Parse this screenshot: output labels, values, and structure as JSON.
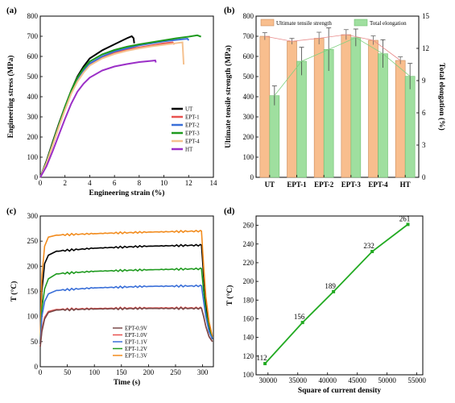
{
  "chart_data": [
    {
      "panel": "(a)",
      "type": "line",
      "xlabel": "Engineering strain (%)",
      "ylabel": "Engineering stress (MPa)",
      "xlim": [
        0,
        14
      ],
      "ylim": [
        0,
        800
      ],
      "xticks": [
        0,
        2,
        4,
        6,
        8,
        10,
        12,
        14
      ],
      "yticks": [
        0,
        100,
        200,
        300,
        400,
        500,
        600,
        700,
        800
      ],
      "legend": "right",
      "series": [
        {
          "name": "UT",
          "color": "#000000",
          "points": [
            [
              0,
              0
            ],
            [
              0.5,
              80
            ],
            [
              1,
              175
            ],
            [
              1.5,
              265
            ],
            [
              2,
              350
            ],
            [
              2.5,
              430
            ],
            [
              3,
              500
            ],
            [
              3.5,
              550
            ],
            [
              4,
              590
            ],
            [
              5,
              630
            ],
            [
              6,
              660
            ],
            [
              7,
              690
            ],
            [
              7.4,
              700
            ],
            [
              7.55,
              690
            ],
            [
              7.6,
              665
            ]
          ]
        },
        {
          "name": "EPT-1",
          "color": "#e8524f",
          "points": [
            [
              0,
              0
            ],
            [
              0.5,
              70
            ],
            [
              1,
              160
            ],
            [
              1.5,
              250
            ],
            [
              2,
              340
            ],
            [
              2.5,
              420
            ],
            [
              3,
              480
            ],
            [
              3.5,
              525
            ],
            [
              4,
              560
            ],
            [
              5,
              595
            ],
            [
              6,
              620
            ],
            [
              7,
              635
            ],
            [
              8,
              645
            ],
            [
              9,
              655
            ],
            [
              10,
              665
            ],
            [
              10.7,
              670
            ],
            [
              10.85,
              660
            ]
          ]
        },
        {
          "name": "EPT-2",
          "color": "#3a6fd8",
          "points": [
            [
              0,
              0
            ],
            [
              0.5,
              70
            ],
            [
              1,
              165
            ],
            [
              1.5,
              255
            ],
            [
              2,
              345
            ],
            [
              2.5,
              425
            ],
            [
              3,
              485
            ],
            [
              3.5,
              530
            ],
            [
              4,
              565
            ],
            [
              5,
              600
            ],
            [
              6,
              625
            ],
            [
              7,
              640
            ],
            [
              8,
              655
            ],
            [
              9,
              665
            ],
            [
              10,
              675
            ],
            [
              11,
              682
            ],
            [
              11.9,
              688
            ],
            [
              12,
              680
            ]
          ]
        },
        {
          "name": "EPT-3",
          "color": "#1e9a1e",
          "points": [
            [
              0,
              0
            ],
            [
              0.5,
              75
            ],
            [
              1,
              170
            ],
            [
              1.5,
              260
            ],
            [
              2,
              350
            ],
            [
              2.5,
              430
            ],
            [
              3,
              495
            ],
            [
              3.5,
              540
            ],
            [
              4,
              575
            ],
            [
              5,
              610
            ],
            [
              6,
              632
            ],
            [
              7,
              648
            ],
            [
              8,
              660
            ],
            [
              9,
              670
            ],
            [
              10,
              680
            ],
            [
              11,
              690
            ],
            [
              12,
              698
            ],
            [
              12.7,
              705
            ],
            [
              13,
              698
            ]
          ]
        },
        {
          "name": "EPT-4",
          "color": "#f5c18f",
          "points": [
            [
              0,
              0
            ],
            [
              0.5,
              70
            ],
            [
              1,
              160
            ],
            [
              1.5,
              250
            ],
            [
              2,
              335
            ],
            [
              2.5,
              415
            ],
            [
              3,
              475
            ],
            [
              3.5,
              520
            ],
            [
              4,
              555
            ],
            [
              5,
              590
            ],
            [
              6,
              612
            ],
            [
              7,
              628
            ],
            [
              8,
              640
            ],
            [
              9,
              650
            ],
            [
              10,
              658
            ],
            [
              11,
              666
            ],
            [
              11.5,
              670
            ],
            [
              11.6,
              560
            ]
          ]
        },
        {
          "name": "HT",
          "color": "#9b2fc7",
          "points": [
            [
              0,
              0
            ],
            [
              0.5,
              55
            ],
            [
              1,
              130
            ],
            [
              1.5,
              210
            ],
            [
              2,
              290
            ],
            [
              2.5,
              365
            ],
            [
              3,
              425
            ],
            [
              3.5,
              465
            ],
            [
              4,
              495
            ],
            [
              5,
              530
            ],
            [
              6,
              550
            ],
            [
              7,
              562
            ],
            [
              8,
              572
            ],
            [
              9,
              578
            ],
            [
              9.3,
              580
            ],
            [
              9.35,
              570
            ]
          ]
        }
      ]
    },
    {
      "panel": "(b)",
      "type": "bar",
      "xlabel": "",
      "ylabel": "Ultimate tensile strength (MPa)",
      "y2label": "Total elongation (%)",
      "categories": [
        "UT",
        "EPT-1",
        "EPT-2",
        "EPT-3",
        "EPT-4",
        "HT"
      ],
      "ylim": [
        0,
        800
      ],
      "y2lim": [
        0,
        15
      ],
      "yticks": [
        0,
        100,
        200,
        300,
        400,
        500,
        600,
        700,
        800
      ],
      "y2ticks": [
        0,
        3,
        6,
        9,
        12,
        15
      ],
      "legend": "top",
      "series": [
        {
          "name": "Ultimate tensile strength",
          "color": "#f8be8e",
          "values": [
            700,
            675,
            690,
            708,
            680,
            580
          ],
          "errors": [
            18,
            15,
            30,
            25,
            22,
            18
          ]
        },
        {
          "name": "Total elongation",
          "color": "#9fdf9f",
          "axis": "right",
          "values": [
            7.6,
            10.8,
            11.9,
            13.0,
            11.5,
            9.4
          ],
          "errors": [
            0.9,
            1.3,
            2.0,
            0.8,
            1.3,
            1.2
          ]
        }
      ]
    },
    {
      "panel": "(c)",
      "type": "line",
      "xlabel": "Time (s)",
      "ylabel": "T (°C)",
      "xlim": [
        0,
        320
      ],
      "ylim": [
        0,
        300
      ],
      "xticks": [
        0,
        50,
        100,
        150,
        200,
        250,
        300
      ],
      "yticks": [
        0,
        50,
        100,
        150,
        200,
        250,
        300
      ],
      "legend": "bottom-right",
      "series": [
        {
          "name": "EPT-0.9V",
          "color": "#7a4a4a",
          "points": [
            [
              0,
              40
            ],
            [
              3,
              70
            ],
            [
              8,
              95
            ],
            [
              15,
              108
            ],
            [
              30,
              113
            ],
            [
              100,
              115
            ],
            [
              200,
              116
            ],
            [
              298,
              116
            ],
            [
              302,
              100
            ],
            [
              306,
              80
            ],
            [
              312,
              60
            ],
            [
              318,
              50
            ]
          ]
        },
        {
          "name": "EPT-1.0V",
          "color": "#e8524f",
          "points": [
            [
              0,
              40
            ],
            [
              3,
              75
            ],
            [
              8,
              98
            ],
            [
              15,
              110
            ],
            [
              30,
              114
            ],
            [
              100,
              116
            ],
            [
              200,
              117
            ],
            [
              298,
              117
            ],
            [
              302,
              100
            ],
            [
              306,
              80
            ],
            [
              312,
              60
            ],
            [
              318,
              50
            ]
          ]
        },
        {
          "name": "EPT-1.1V",
          "color": "#3a6fd8",
          "points": [
            [
              0,
              45
            ],
            [
              3,
              100
            ],
            [
              8,
              130
            ],
            [
              15,
              145
            ],
            [
              30,
              152
            ],
            [
              100,
              157
            ],
            [
              200,
              160
            ],
            [
              298,
              161
            ],
            [
              302,
              130
            ],
            [
              306,
              100
            ],
            [
              312,
              70
            ],
            [
              318,
              55
            ]
          ]
        },
        {
          "name": "EPT-1.2V",
          "color": "#1e9a1e",
          "points": [
            [
              0,
              45
            ],
            [
              3,
              115
            ],
            [
              8,
              155
            ],
            [
              15,
              175
            ],
            [
              30,
              185
            ],
            [
              100,
              190
            ],
            [
              200,
              193
            ],
            [
              298,
              195
            ],
            [
              302,
              150
            ],
            [
              306,
              110
            ],
            [
              312,
              75
            ],
            [
              318,
              55
            ]
          ]
        },
        {
          "name": "EPT-1.3V",
          "color": "#f28c1e",
          "points": [
            [
              0,
              50
            ],
            [
              3,
              180
            ],
            [
              8,
              240
            ],
            [
              15,
              258
            ],
            [
              30,
              262
            ],
            [
              100,
              265
            ],
            [
              200,
              268
            ],
            [
              298,
              270
            ],
            [
              302,
              200
            ],
            [
              306,
              140
            ],
            [
              312,
              90
            ],
            [
              318,
              60
            ]
          ]
        },
        {
          "name": "",
          "color": "#000000",
          "points": [
            [
              0,
              45
            ],
            [
              3,
              150
            ],
            [
              8,
              205
            ],
            [
              15,
              222
            ],
            [
              30,
              230
            ],
            [
              100,
              236
            ],
            [
              200,
              240
            ],
            [
              298,
              242
            ],
            [
              302,
              180
            ],
            [
              306,
              125
            ],
            [
              312,
              80
            ],
            [
              318,
              55
            ]
          ]
        }
      ]
    },
    {
      "panel": "(d)",
      "type": "line",
      "xlabel": "Square of current density",
      "ylabel": "T (°C)",
      "xlim": [
        28000,
        56000
      ],
      "ylim": [
        100,
        270
      ],
      "xticks": [
        30000,
        35000,
        40000,
        45000,
        50000,
        55000
      ],
      "yticks": [
        100,
        120,
        140,
        160,
        180,
        200,
        220,
        240,
        260
      ],
      "series": [
        {
          "name": "",
          "color": "#22aa22",
          "x": [
            29500,
            35800,
            41000,
            47500,
            53500
          ],
          "values": [
            112,
            156,
            189,
            232,
            261
          ],
          "labels": [
            "112",
            "156",
            "189",
            "232",
            "261"
          ]
        }
      ]
    }
  ]
}
